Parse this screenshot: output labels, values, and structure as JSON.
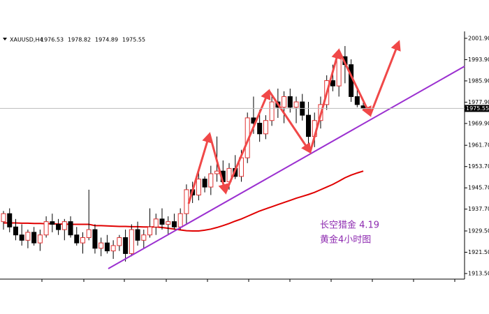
{
  "chart_data": {
    "type": "candlestick",
    "symbol": "XAUUSD,H4",
    "open": [
      1933,
      1936,
      1931,
      1928,
      1926,
      1929,
      1925,
      1928,
      1933,
      1932,
      1930,
      1933,
      1928,
      1925,
      1927,
      1930,
      1923,
      1925,
      1922,
      1924,
      1927,
      1921,
      1930,
      1926,
      1928,
      1931,
      1934,
      1932,
      1933,
      1931,
      1936,
      1945,
      1943,
      1949,
      1946,
      1951,
      1952,
      1948,
      1953,
      1950,
      1957,
      1972,
      1970,
      1966,
      1971,
      1978,
      1976,
      1980,
      1976,
      1978,
      1973,
      1965,
      1971,
      1977,
      1986,
      1984,
      1995,
      1992,
      1980,
      1976.53
    ],
    "high": [
      1937,
      1938,
      1934,
      1932,
      1930,
      1931,
      1930,
      1935,
      1936,
      1934,
      1934,
      1935,
      1931,
      1929,
      1945,
      1932,
      1927,
      1928,
      1926,
      1928,
      1930,
      1932,
      1933,
      1930,
      1938,
      1936,
      1938,
      1935,
      1936,
      1938,
      1947,
      1948,
      1952,
      1950,
      1954,
      1965,
      1956,
      1955,
      1958,
      1960,
      1974,
      1980,
      1975,
      1973,
      1980,
      1983,
      1982,
      1983,
      1980,
      1981,
      1978,
      1974,
      1980,
      1988,
      1992,
      1997,
      1999,
      1994,
      1983,
      1978.82
    ],
    "low": [
      1930,
      1929,
      1926,
      1924,
      1923,
      1924,
      1922,
      1927,
      1929,
      1928,
      1926,
      1927,
      1924,
      1921,
      1926,
      1921,
      1920,
      1921,
      1919,
      1922,
      1918,
      1920,
      1924,
      1923,
      1927,
      1928,
      1930,
      1928,
      1930,
      1930,
      1932,
      1940,
      1941,
      1944,
      1943,
      1948,
      1946,
      1945,
      1949,
      1948,
      1955,
      1966,
      1963,
      1964,
      1969,
      1972,
      1970,
      1974,
      1970,
      1971,
      1962,
      1961,
      1968,
      1975,
      1982,
      1980,
      1985,
      1978,
      1976,
      1974.89
    ],
    "close": [
      1936,
      1931,
      1928,
      1926,
      1929,
      1925,
      1928,
      1933,
      1932,
      1930,
      1933,
      1928,
      1925,
      1927,
      1930,
      1923,
      1925,
      1922,
      1924,
      1927,
      1921,
      1930,
      1926,
      1928,
      1931,
      1934,
      1932,
      1933,
      1931,
      1936,
      1945,
      1943,
      1949,
      1946,
      1951,
      1952,
      1948,
      1953,
      1950,
      1957,
      1972,
      1970,
      1966,
      1971,
      1978,
      1976,
      1980,
      1976,
      1978,
      1973,
      1965,
      1971,
      1977,
      1986,
      1984,
      1995,
      1992,
      1980,
      1977,
      1975.55
    ],
    "bull_color": "#e03030",
    "bear_color": "#000000",
    "moving_average": {
      "color": "#e00000",
      "values": [
        1932.5,
        1932.5,
        1932.5,
        1932.4,
        1932.4,
        1932.3,
        1932.3,
        1932.2,
        1932.2,
        1932.1,
        1932.1,
        1932,
        1932,
        1932,
        1932,
        1931.5,
        1931.5,
        1931.4,
        1931.3,
        1931.2,
        1931.2,
        1931.1,
        1931.1,
        1931,
        1931,
        1931,
        1930.8,
        1930.5,
        1930.2,
        1929.9,
        1929.6,
        1929.5,
        1929.5,
        1929.8,
        1930.2,
        1930.8,
        1931.5,
        1932.3,
        1933.2,
        1934,
        1935,
        1936,
        1937,
        1937.8,
        1938.6,
        1939.4,
        1940.2,
        1941,
        1941.8,
        1942.5,
        1943.2,
        1944,
        1945,
        1946,
        1947,
        1948.2,
        1949.5,
        1950.5,
        1951.3,
        1952
      ]
    },
    "ylim": [
      1911.4,
      2004.5
    ],
    "yticks": [
      {
        "value": 2001.9,
        "label": "2001.90"
      },
      {
        "value": 1993.9,
        "label": "1993.90"
      },
      {
        "value": 1985.9,
        "label": "1985.90"
      },
      {
        "value": 1977.9,
        "label": "1977.90"
      },
      {
        "value": 1969.9,
        "label": "1969.90"
      },
      {
        "value": 1961.7,
        "label": "1961.70"
      },
      {
        "value": 1953.7,
        "label": "1953.70"
      },
      {
        "value": 1945.7,
        "label": "1945.70"
      },
      {
        "value": 1937.7,
        "label": "1937.70"
      },
      {
        "value": 1929.5,
        "label": "1929.50"
      },
      {
        "value": 1921.5,
        "label": "1921.50"
      },
      {
        "value": 1913.5,
        "label": "1913.50"
      }
    ],
    "annotations": [
      "长空猎金  4.19",
      "黄金4小时图"
    ]
  }
}
